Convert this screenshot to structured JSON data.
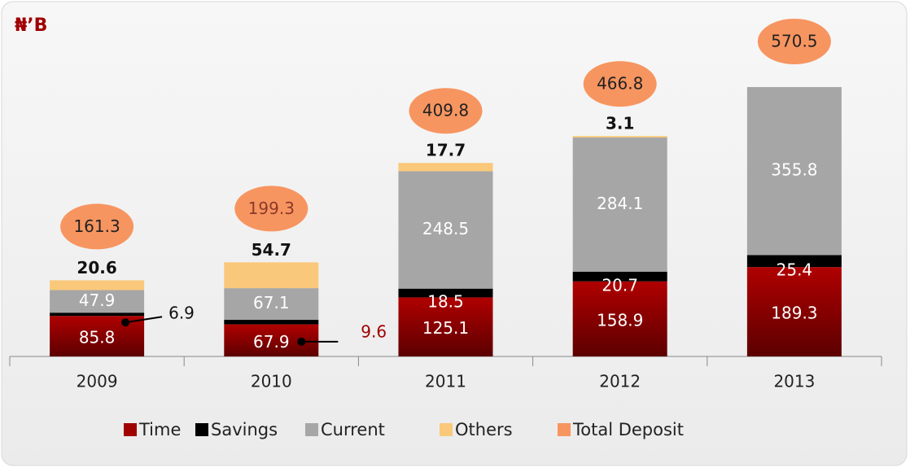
{
  "chart_data": {
    "type": "bar",
    "stacked": true,
    "title": "₦’B",
    "categories": [
      "2009",
      "2010",
      "2011",
      "2012",
      "2013"
    ],
    "series": [
      {
        "name": "Time",
        "color": "#a00000",
        "values": [
          85.8,
          67.9,
          125.1,
          158.9,
          189.3
        ]
      },
      {
        "name": "Savings",
        "color": "#000000",
        "values": [
          6.9,
          9.6,
          18.5,
          20.7,
          25.4
        ]
      },
      {
        "name": "Current",
        "color": "#a6a6a6",
        "values": [
          47.9,
          67.1,
          248.5,
          284.1,
          355.8
        ]
      },
      {
        "name": "Others",
        "color": "#fac87a",
        "values": [
          20.6,
          54.7,
          17.7,
          3.1,
          null
        ]
      },
      {
        "name": "Total Deposit",
        "color": "#f79560",
        "values": [
          161.3,
          199.3,
          409.8,
          466.8,
          570.5
        ]
      }
    ],
    "legend": "bottom"
  }
}
